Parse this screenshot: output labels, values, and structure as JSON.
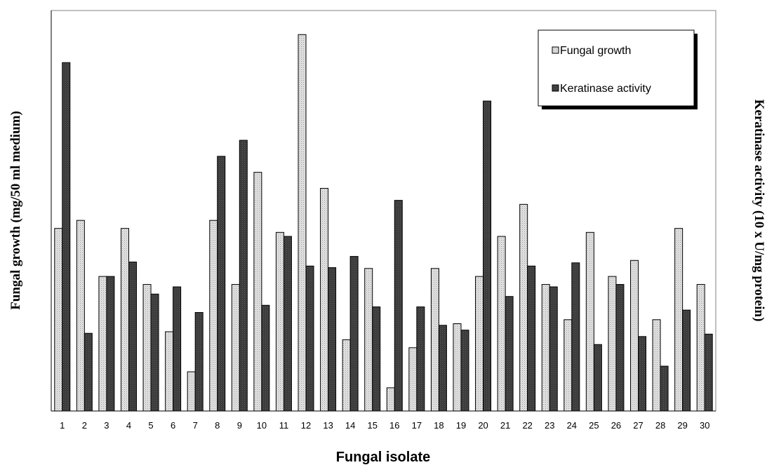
{
  "chart_data": {
    "type": "bar",
    "xlabel": "Fungal isolate",
    "ylabel": "Fungal growth (mg/50 ml medium)",
    "y2label": "Keratinase activity (10 x U/mg protein)",
    "categories": [
      "1",
      "2",
      "3",
      "4",
      "5",
      "6",
      "7",
      "8",
      "9",
      "10",
      "11",
      "12",
      "13",
      "14",
      "15",
      "16",
      "17",
      "18",
      "19",
      "20",
      "21",
      "22",
      "23",
      "24",
      "25",
      "26",
      "27",
      "28",
      "29",
      "30"
    ],
    "series": [
      {
        "name": "Fungal growth",
        "color": "#d9d9d9",
        "values": [
          45.6,
          47.6,
          33.6,
          45.6,
          31.6,
          19.8,
          9.8,
          47.6,
          31.6,
          59.6,
          44.6,
          94,
          55.6,
          17.8,
          35.6,
          5.8,
          15.8,
          35.6,
          21.8,
          33.6,
          43.6,
          51.6,
          31.6,
          22.8,
          44.6,
          33.6,
          37.6,
          22.8,
          45.6,
          31.6
        ]
      },
      {
        "name": "Keratinase activity",
        "color": "#3f3f3f",
        "values": [
          87,
          19.4,
          33.6,
          37.2,
          29.2,
          31,
          24.6,
          63.6,
          67.6,
          26.4,
          43.6,
          36.2,
          35.8,
          38.6,
          26,
          52.6,
          26,
          21.4,
          20.2,
          77.4,
          28.6,
          36.2,
          31,
          37,
          16.6,
          31.6,
          18.6,
          11.2,
          25.2,
          19.2
        ]
      }
    ],
    "ylim": [
      0,
      100
    ],
    "legend": "top-right",
    "grid": false
  }
}
